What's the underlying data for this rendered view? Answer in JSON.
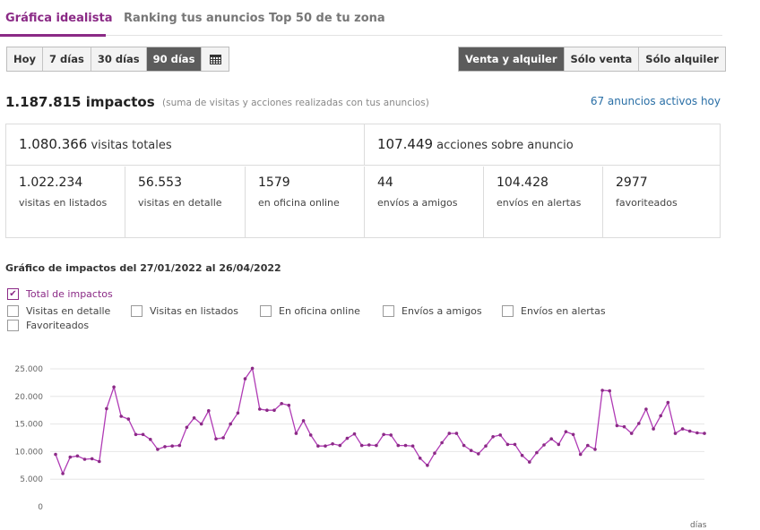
{
  "tabs": [
    {
      "label": "Gráfica idealista",
      "active": true
    },
    {
      "label": "Ranking tus anuncios",
      "active": false
    },
    {
      "label": "Top 50 de tu zona",
      "active": false
    }
  ],
  "period_buttons": [
    {
      "label": "Hoy",
      "active": false
    },
    {
      "label": "7 días",
      "active": false
    },
    {
      "label": "30 días",
      "active": false
    },
    {
      "label": "90 días",
      "active": true
    }
  ],
  "calendar_icon": "calendar-icon",
  "type_buttons": [
    {
      "label": "Venta y alquiler",
      "active": true
    },
    {
      "label": "Sólo venta",
      "active": false
    },
    {
      "label": "Sólo alquiler",
      "active": false
    }
  ],
  "summary": {
    "impacts_value": "1.187.815",
    "impacts_label": "impactos",
    "impacts_note": "(suma de visitas y acciones realizadas con tus anuncios)",
    "active_ads": "67 anuncios activos hoy"
  },
  "stats": {
    "visits_total": {
      "value": "1.080.366",
      "label": "visitas totales"
    },
    "actions_total": {
      "value": "107.449",
      "label": "acciones sobre anuncio"
    },
    "breakdown": [
      {
        "value": "1.022.234",
        "label": "visitas en listados"
      },
      {
        "value": "56.553",
        "label": "visitas en detalle"
      },
      {
        "value": "1579",
        "label": "en oficina online"
      },
      {
        "value": "44",
        "label": "envíos a amigos"
      },
      {
        "value": "104.428",
        "label": "envíos en alertas"
      },
      {
        "value": "2977",
        "label": "favoriteados"
      }
    ]
  },
  "chart_section": {
    "title": "Gráfico de impactos del 27/01/2022 al 26/04/2022",
    "checkboxes": [
      {
        "label": "Total de impactos",
        "checked": true
      },
      {
        "label": "Visitas en detalle",
        "checked": false
      },
      {
        "label": "Visitas en listados",
        "checked": false
      },
      {
        "label": "En oficina online",
        "checked": false
      },
      {
        "label": "Envíos a amigos",
        "checked": false
      },
      {
        "label": "Envíos en alertas",
        "checked": false
      },
      {
        "label": "Favoriteados",
        "checked": false
      }
    ]
  },
  "colors": {
    "accent": "#8b2a86",
    "line": "#b03bb5",
    "link": "#2a6fa6"
  },
  "chart_data": {
    "type": "line",
    "xlabel": "días",
    "ylabel": "",
    "ylim": [
      0,
      25000
    ],
    "yticks": [
      0,
      5000,
      10000,
      15000,
      20000,
      25000
    ],
    "ytick_labels": [
      "0",
      "5.000",
      "10.000",
      "15.000",
      "20.000",
      "25.000"
    ],
    "grid": true,
    "series": [
      {
        "name": "Total de impactos",
        "values": [
          9500,
          6000,
          9000,
          9200,
          8600,
          8700,
          8200,
          17800,
          21700,
          16400,
          15900,
          13100,
          13100,
          12200,
          10400,
          10900,
          11000,
          11100,
          14400,
          16100,
          15000,
          17400,
          12300,
          12500,
          15000,
          17000,
          23200,
          25100,
          17700,
          17500,
          17500,
          18700,
          18400,
          13300,
          15600,
          13000,
          11000,
          11000,
          11400,
          11100,
          12400,
          13200,
          11100,
          11200,
          11100,
          13100,
          13000,
          11100,
          11100,
          11000,
          8800,
          7500,
          9700,
          11600,
          13300,
          13300,
          11100,
          10200,
          9600,
          11000,
          12700,
          13000,
          11300,
          11300,
          9300,
          8100,
          9800,
          11200,
          12300,
          11300,
          13600,
          13100,
          9500,
          11100,
          10400,
          21100,
          21000,
          14700,
          14500,
          13300,
          15100,
          17700,
          14100,
          16500,
          18900,
          13300,
          14100,
          13700,
          13400,
          13300
        ]
      }
    ]
  }
}
